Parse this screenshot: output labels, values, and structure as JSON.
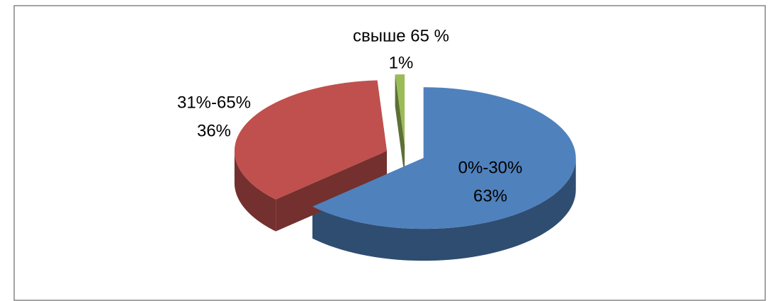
{
  "chart_data": {
    "type": "pie",
    "categories": [
      "0%-30%",
      "31%-65%",
      "свыше 65 %"
    ],
    "values": [
      63,
      36,
      1
    ],
    "value_labels": [
      "63%",
      "36%",
      "1%"
    ],
    "colors": [
      "#4f81bd",
      "#c0504d",
      "#9bbb59"
    ]
  }
}
